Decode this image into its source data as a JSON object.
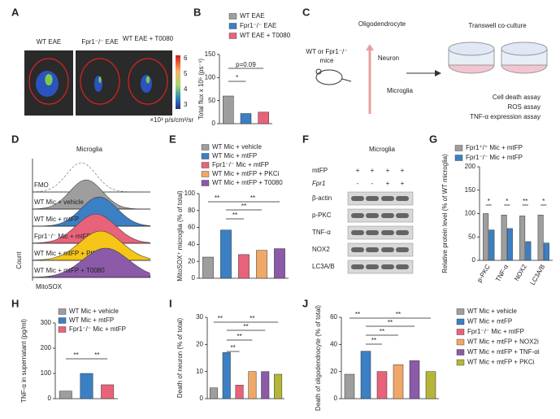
{
  "panel_labels": [
    "A",
    "B",
    "C",
    "D",
    "E",
    "F",
    "G",
    "H",
    "I",
    "J"
  ],
  "panel_a": {
    "labels": [
      "WT EAE",
      "Fpr1⁻/⁻ EAE",
      "WT EAE + T0080"
    ],
    "colorbar_ticks": [
      6,
      5,
      4,
      3
    ],
    "colorbar_unit": "×10³ p/s/cm²/sr"
  },
  "panel_c": {
    "mice": [
      "WT or Fpr1⁻/⁻",
      "mice"
    ],
    "cells": [
      "Oligodendrocyte",
      "Neuron",
      "Microglia"
    ],
    "title": "Transwell co-culture",
    "assays": [
      "Cell death assay",
      "ROS assay",
      "TNF-α expression assay"
    ]
  },
  "panel_d": {
    "title": "Microglia",
    "rows": [
      "FMO",
      "WT Mic + vehicle",
      "WT Mic + mtFP",
      "Fpr1⁻/⁻ Mic + mtFP",
      "WT Mic + mtFP + PKCi",
      "WT Mic + mtFP + T0080"
    ],
    "y_label": "Count",
    "x_label": "MitoSOX"
  },
  "panel_f": {
    "title": "Microglia",
    "row_labels": [
      "mtFP",
      "Fpr1"
    ],
    "treatment_marks": [
      [
        "+",
        "+",
        "+",
        "+"
      ],
      [
        "-",
        "-",
        "+",
        "+"
      ]
    ],
    "bands": [
      "β-actin",
      "p-PKC",
      "TNF-α",
      "NOX2",
      "LC3A/B"
    ]
  },
  "chart_data": [
    {
      "type": "bar",
      "y_label": "Total flux x 10⁵ (ps⁻¹)",
      "ylim": [
        0,
        150
      ],
      "yticks": [
        0,
        50,
        100,
        150
      ],
      "series": [
        {
          "name": "WT EAE",
          "color": "#9e9e9e",
          "values": [
            60
          ]
        },
        {
          "name": "Fpr1⁻/⁻ EAE",
          "color": "#3b7fc4",
          "values": [
            22
          ]
        },
        {
          "name": "WT EAE + T0080",
          "color": "#e8637a",
          "values": [
            25
          ]
        }
      ],
      "annotations": [
        "p=0.09",
        "*"
      ]
    },
    {
      "type": "bar",
      "y_label": "MitoSOX⁺ microglia (% of total)",
      "ylim": [
        0,
        100
      ],
      "yticks": [
        0,
        20,
        40,
        60,
        80,
        100
      ],
      "series": [
        {
          "name": "WT Mic + vehicle",
          "color": "#9e9e9e",
          "values": [
            25
          ]
        },
        {
          "name": "WT Mic + mtFP",
          "color": "#3b7fc4",
          "values": [
            57
          ]
        },
        {
          "name": "Fpr1⁻/⁻ Mic + mtFP",
          "color": "#e8637a",
          "values": [
            28
          ]
        },
        {
          "name": "WT Mic + mtFP + PKCi",
          "color": "#f0a868",
          "values": [
            33
          ]
        },
        {
          "name": "WT Mic + mtFP + T0080",
          "color": "#8b5aa8",
          "values": [
            35
          ]
        }
      ],
      "annotations": [
        "**",
        "**",
        "**",
        "**"
      ]
    },
    {
      "type": "bar",
      "y_label": "Relative protein level (% of WT microglia)",
      "ylim": [
        0,
        200
      ],
      "yticks": [
        0,
        50,
        100,
        150,
        200
      ],
      "categories": [
        "p-PKC",
        "TNF-α",
        "NOX2",
        "LC3A/B"
      ],
      "series": [
        {
          "name": "Fpr1⁺/⁺ Mic + mtFP",
          "color": "#9e9e9e",
          "values": [
            100,
            97,
            95,
            97
          ]
        },
        {
          "name": "Fpr1⁻/⁻ Mic + mtFP",
          "color": "#3b7fc4",
          "values": [
            65,
            68,
            40,
            37
          ]
        }
      ],
      "annotations": [
        "*",
        "*",
        "**",
        "*"
      ]
    },
    {
      "type": "bar",
      "y_label": "TNF-α in supernatant (pg/ml)",
      "ylim": [
        0,
        300
      ],
      "yticks": [
        0,
        100,
        200,
        300
      ],
      "series": [
        {
          "name": "WT Mic + vehicle",
          "color": "#9e9e9e",
          "values": [
            30
          ]
        },
        {
          "name": "WT Mic + mtFP",
          "color": "#3b7fc4",
          "values": [
            100
          ]
        },
        {
          "name": "Fpr1⁻/⁻ Mic + mtFP",
          "color": "#e8637a",
          "values": [
            55
          ]
        }
      ],
      "annotations": [
        "**",
        "**"
      ]
    },
    {
      "type": "bar",
      "y_label": "Death of neuron (% of total)",
      "ylim": [
        0,
        30
      ],
      "yticks": [
        0,
        10,
        20,
        30
      ],
      "values": [
        4,
        17,
        5,
        10,
        10,
        9
      ],
      "colors": [
        "#9e9e9e",
        "#3b7fc4",
        "#e8637a",
        "#f0a868",
        "#8b5aa8",
        "#b5b53a"
      ],
      "annotations": [
        "**",
        "**",
        "**",
        "**",
        "**"
      ]
    },
    {
      "type": "bar",
      "y_label": "Death of oligodendrocyte (% of total)",
      "ylim": [
        0,
        60
      ],
      "yticks": [
        0,
        20,
        40,
        60
      ],
      "series": [
        {
          "name": "WT Mic + vehicle",
          "color": "#9e9e9e",
          "values": [
            18
          ]
        },
        {
          "name": "WT Mic + mtFP",
          "color": "#3b7fc4",
          "values": [
            35
          ]
        },
        {
          "name": "Fpr1⁻/⁻ Mic + mtFP",
          "color": "#e8637a",
          "values": [
            20
          ]
        },
        {
          "name": "WT Mic + mtFP + NOX2i",
          "color": "#f0a868",
          "values": [
            25
          ]
        },
        {
          "name": "WT Mic + mtFP + TNF-αi",
          "color": "#8b5aa8",
          "values": [
            28
          ]
        },
        {
          "name": "WT Mic + mtFP + PKCi",
          "color": "#b5b53a",
          "values": [
            20
          ]
        }
      ],
      "annotations": [
        "**",
        "**",
        "**",
        "**",
        "**"
      ]
    }
  ]
}
